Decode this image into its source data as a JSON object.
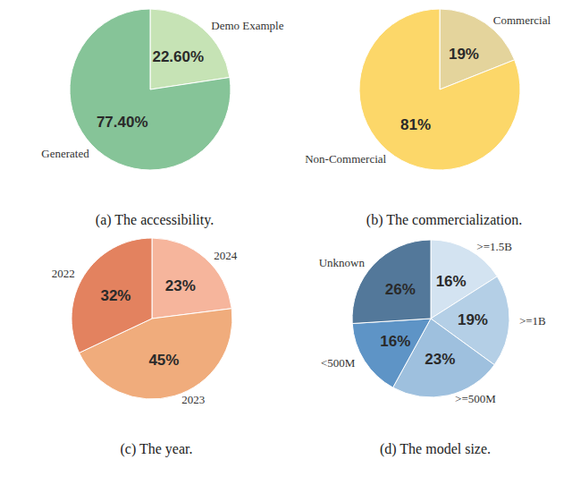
{
  "chart_data": [
    {
      "type": "pie",
      "title": "(a) The accessibility.",
      "categories": [
        "Demo Example",
        "Generated"
      ],
      "values": [
        22.6,
        77.4
      ],
      "value_labels": [
        "22.60%",
        "77.40%"
      ],
      "colors": [
        "#c6e3b5",
        "#86c498"
      ],
      "data_labels": true
    },
    {
      "type": "pie",
      "title": "(b) The commercialization.",
      "categories": [
        "Commercial",
        "Non-Commercial"
      ],
      "values": [
        19,
        81
      ],
      "value_labels": [
        "19%",
        "81%"
      ],
      "colors": [
        "#e4d49c",
        "#fcd769"
      ],
      "data_labels": true
    },
    {
      "type": "pie",
      "title": "(c) The year.",
      "categories": [
        "2024",
        "2023",
        "2022"
      ],
      "values": [
        23,
        45,
        32
      ],
      "value_labels": [
        "23%",
        "45%",
        "32%"
      ],
      "colors": [
        "#f6b59c",
        "#f0ac7c",
        "#e3825f"
      ],
      "data_labels": true
    },
    {
      "type": "pie",
      "title": "(d) The model size.",
      "categories": [
        ">=1.5B",
        ">=1B",
        ">=500M",
        "<500M",
        "Unknown"
      ],
      "values": [
        16,
        19,
        23,
        16,
        26
      ],
      "value_labels": [
        "16%",
        "19%",
        "23%",
        "16%",
        "26%"
      ],
      "colors": [
        "#d3e3f1",
        "#b4cfe6",
        "#9ec0de",
        "#5e94c6",
        "#53789a"
      ],
      "data_labels": true
    }
  ]
}
